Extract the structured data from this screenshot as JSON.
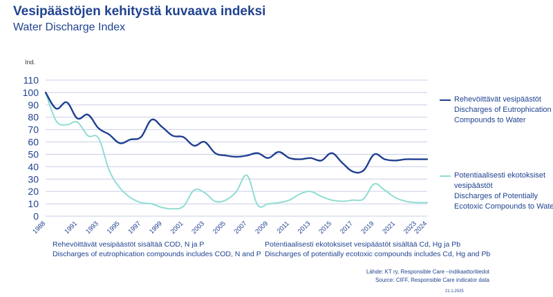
{
  "header": {
    "title": "Vesipäästöjen kehitystä kuvaava indeksi",
    "subtitle": "Water Discharge Index"
  },
  "notes": {
    "left_line1": "Rehevöittävät vesipäästöt sisältää COD, N ja P",
    "left_line2": "Discharges of eutrophication compounds includes COD, N and P",
    "right_line1": "Potentiaalisesti ekotoksiset vesipäästöt sisältää Cd, Hg ja Pb",
    "right_line2": "Discharges of potentially ecotoxic compounds includes Cd, Hg and Pb"
  },
  "source": {
    "line1": "Lähde: KT ry, Responsible Care –indikaattoritiedot",
    "line2": "Source: CIFF, Responsible Care indicator data"
  },
  "date": "21.1.2025",
  "colors": {
    "series1": "#1f3f8f",
    "series2": "#8fdcd3",
    "grid": "#c8cde6",
    "axis_text": "#1f3f8f"
  },
  "chart_data": {
    "type": "line",
    "title": "Vesipäästöjen kehitystä kuvaava indeksi",
    "ylabel": "Ind.",
    "ylim": [
      0,
      110
    ],
    "yticks": [
      0,
      10,
      20,
      30,
      40,
      50,
      60,
      70,
      80,
      90,
      100,
      110
    ],
    "xlim": [
      1988,
      2024
    ],
    "xticks": [
      1988,
      1991,
      1993,
      1995,
      1997,
      1999,
      2001,
      2003,
      2005,
      2007,
      2009,
      2011,
      2013,
      2015,
      2017,
      2019,
      2021,
      2023,
      2024
    ],
    "grid": true,
    "legend_position": "right",
    "series": [
      {
        "name": "Rehevöittävät vesipäästöt Discharges of Eutrophication Compounds to Water",
        "label_fi": "Rehevöittävät vesipäästöt",
        "label_en": "Discharges of Eutrophication Compounds to Water",
        "x": [
          1988,
          1989,
          1990,
          1991,
          1992,
          1993,
          1994,
          1995,
          1996,
          1997,
          1998,
          1999,
          2000,
          2001,
          2002,
          2003,
          2004,
          2005,
          2006,
          2007,
          2008,
          2009,
          2010,
          2011,
          2012,
          2013,
          2014,
          2015,
          2016,
          2017,
          2018,
          2019,
          2020,
          2021,
          2022,
          2023,
          2024
        ],
        "values": [
          100,
          87,
          92,
          79,
          82,
          71,
          66,
          59,
          62,
          64,
          78,
          72,
          65,
          64,
          57,
          60,
          51,
          49,
          48,
          49,
          51,
          47,
          52,
          47,
          46,
          47,
          45,
          51,
          43,
          36,
          37,
          50,
          46,
          45,
          46,
          46,
          46
        ]
      },
      {
        "name": "Potentiaalisesti ekotoksiset vesipäästöt Discharges of Potentially Ecotoxic Compounds to Water",
        "label_fi": "Potentiaalisesti ekotoksiset vesipäästöt",
        "label_en": "Discharges of Potentially Ecotoxic Compounds to Water",
        "x": [
          1988,
          1989,
          1990,
          1991,
          1992,
          1993,
          1994,
          1995,
          1996,
          1997,
          1998,
          1999,
          2000,
          2001,
          2002,
          2003,
          2004,
          2005,
          2006,
          2007,
          2008,
          2009,
          2010,
          2011,
          2012,
          2013,
          2014,
          2015,
          2016,
          2017,
          2018,
          2019,
          2020,
          2021,
          2022,
          2023,
          2024
        ],
        "values": [
          100,
          77,
          74,
          76,
          65,
          63,
          37,
          23,
          15,
          11,
          10,
          7,
          6,
          8,
          21,
          19,
          12,
          13,
          20,
          33,
          9,
          10,
          11,
          13,
          18,
          20,
          16,
          13,
          12,
          13,
          14,
          26,
          21,
          15,
          12,
          11,
          11
        ]
      }
    ]
  }
}
